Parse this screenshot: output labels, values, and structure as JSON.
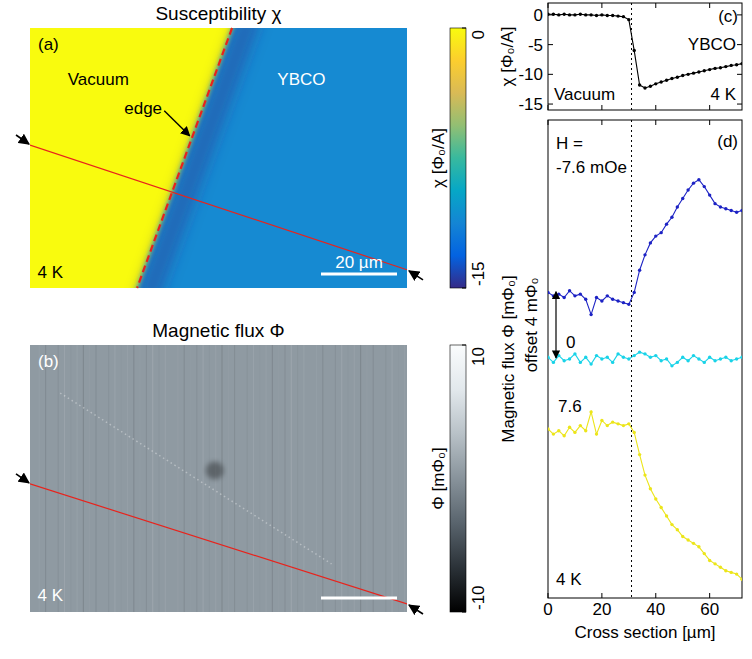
{
  "chart_data": [
    {
      "type": "image",
      "title": "Susceptibility χ",
      "panel": "(a)",
      "regions": [
        {
          "label": "Vacuum",
          "value": 0
        },
        {
          "label": "YBCO",
          "value": -11
        }
      ],
      "annotations": [
        "edge",
        "4 K"
      ],
      "scale_bar": {
        "length": 20,
        "label": "20 µm"
      },
      "colorbar": {
        "label": "χ [Φ₀/A]",
        "range": [
          -15,
          0
        ],
        "ticks": [
          0,
          -15
        ],
        "colors": [
          "#352a87",
          "#0363e1",
          "#1485d4",
          "#06a7c6",
          "#38b99e",
          "#92bf73",
          "#d9ba56",
          "#fcce2e",
          "#f9fb0e"
        ]
      }
    },
    {
      "type": "image",
      "title": "Magnetic flux Φ",
      "panel": "(b)",
      "regions": [
        {
          "value": 0.5
        }
      ],
      "annotations": [
        "4 K"
      ],
      "scale_bar": {
        "length": 20
      },
      "colorbar": {
        "label": "Φ [mΦ₀]",
        "range": [
          -10,
          10
        ],
        "ticks": [
          10,
          -10
        ],
        "colors": [
          "#000000",
          "#2b3238",
          "#59646d",
          "#88939b",
          "#b8c1c7",
          "#e2e8ec",
          "#fafcfd"
        ]
      }
    },
    {
      "type": "line",
      "panel": "(c)",
      "y_label": "χ [Φ₀/A]",
      "x": [
        0,
        2,
        4,
        6,
        8,
        10,
        12,
        14,
        16,
        18,
        20,
        22,
        24,
        26,
        28,
        30,
        32,
        34,
        36,
        38,
        40,
        42,
        44,
        46,
        48,
        50,
        52,
        54,
        56,
        58,
        60,
        62,
        64,
        66,
        68,
        70,
        72
      ],
      "values": [
        0.1,
        0.1,
        0.0,
        0.1,
        0.0,
        0.0,
        0.1,
        0.0,
        0.0,
        -0.1,
        0.0,
        -0.1,
        -0.1,
        -0.2,
        -0.3,
        -0.8,
        -6.0,
        -11.8,
        -12.3,
        -12.0,
        -11.6,
        -11.3,
        -11.0,
        -10.7,
        -10.5,
        -10.2,
        -10.0,
        -9.8,
        -9.6,
        -9.4,
        -9.2,
        -9.0,
        -8.9,
        -8.7,
        -8.5,
        -8.4,
        -8.2
      ],
      "color": "#000000",
      "marker": "circle",
      "xlim": [
        0,
        72
      ],
      "ylim": [
        -16,
        2
      ],
      "xticks": [
        0,
        20,
        40,
        60
      ],
      "yticks": [
        0,
        -5,
        -10,
        -15
      ],
      "tick_labels": "y",
      "edge_position": 31,
      "annotations": [
        "YBCO",
        "Vacuum",
        "4 K"
      ]
    },
    {
      "type": "line",
      "panel": "(d)",
      "x_label": "Cross section [µm]",
      "y_label": "Magnetic flux Φ [mΦ₀]",
      "x": [
        0,
        2,
        4,
        6,
        8,
        10,
        12,
        14,
        16,
        18,
        20,
        22,
        24,
        26,
        28,
        30,
        32,
        34,
        36,
        38,
        40,
        42,
        44,
        46,
        48,
        50,
        52,
        54,
        56,
        58,
        60,
        62,
        64,
        66,
        68,
        70,
        72
      ],
      "series": [
        {
          "name": "-7.6 mOe",
          "color": "#1c22c4",
          "marker": "circle",
          "values": [
            3.9,
            3.7,
            3.8,
            3.6,
            4.0,
            3.7,
            3.8,
            3.5,
            2.6,
            3.6,
            3.4,
            3.7,
            3.5,
            3.4,
            3.3,
            3.2,
            3.9,
            5.2,
            6.1,
            6.8,
            7.2,
            7.4,
            7.9,
            8.3,
            8.9,
            9.4,
            9.9,
            10.3,
            10.5,
            10.1,
            9.6,
            9.1,
            8.9,
            8.8,
            8.7,
            8.6,
            8.7
          ]
        },
        {
          "name": "0",
          "color": "#19d3e8",
          "marker": "circle",
          "values": [
            0.1,
            -0.2,
            0.2,
            -0.1,
            0.0,
            0.3,
            -0.2,
            0.1,
            -0.3,
            0.2,
            0.0,
            0.1,
            -0.2,
            0.3,
            0.1,
            0.0,
            0.2,
            0.4,
            0.3,
            0.1,
            0.2,
            -0.1,
            0.0,
            -0.4,
            -0.2,
            0.1,
            -0.1,
            0.2,
            0.0,
            -0.2,
            0.1,
            -0.1,
            0.0,
            0.1,
            -0.1,
            0.0,
            0.1
          ]
        },
        {
          "name": "7.6",
          "color": "#ece51a",
          "marker": "circle",
          "values": [
            -4.1,
            -4.4,
            -4.2,
            -4.5,
            -4.0,
            -4.3,
            -3.9,
            -4.2,
            -3.1,
            -4.4,
            -3.6,
            -3.9,
            -3.7,
            -3.8,
            -3.9,
            -3.8,
            -4.3,
            -5.6,
            -6.8,
            -7.6,
            -8.2,
            -8.7,
            -9.2,
            -9.7,
            -10.0,
            -10.4,
            -10.6,
            -10.8,
            -11.0,
            -11.4,
            -11.8,
            -12.0,
            -12.2,
            -12.4,
            -12.5,
            -12.6,
            -12.9
          ]
        }
      ],
      "xlim": [
        0,
        72
      ],
      "ylim": [
        -14,
        14
      ],
      "xticks": [
        0,
        20,
        40,
        60
      ],
      "tick_labels": "x",
      "edge_position": 31,
      "offset": {
        "label": "offset 4 mΦ₀",
        "value": 4
      },
      "annotations": [
        "H =",
        "4 K"
      ]
    }
  ]
}
